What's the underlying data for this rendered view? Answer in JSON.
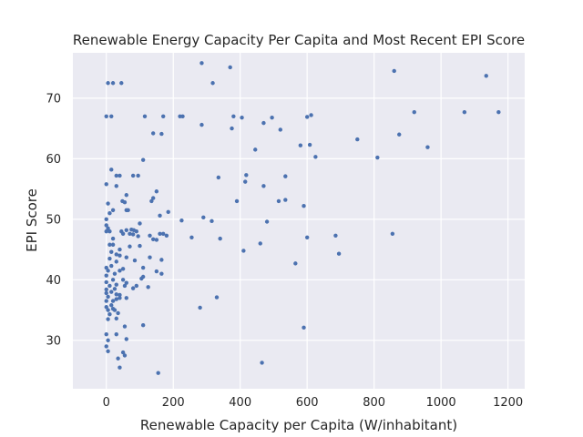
{
  "chart_data": {
    "type": "scatter",
    "title": "Renewable Energy Capacity Per Capita and Most Recent EPI Score",
    "xlabel": "Renewable Capacity per Capita (W/inhabitant)",
    "ylabel": "EPI Score",
    "xlim": [
      -100,
      1250
    ],
    "ylim": [
      22,
      77.5
    ],
    "xticks": [
      0,
      200,
      400,
      600,
      800,
      1000,
      1200
    ],
    "yticks": [
      30,
      40,
      50,
      60,
      70
    ],
    "grid": true,
    "colors": {
      "background": "#eaeaf2",
      "point": "#4c72b0",
      "grid": "#ffffff"
    },
    "points": [
      {
        "x": 5,
        "y": 72.5
      },
      {
        "x": 20,
        "y": 72.5
      },
      {
        "x": 45,
        "y": 72.5
      },
      {
        "x": 285,
        "y": 75.8
      },
      {
        "x": 370,
        "y": 75.1
      },
      {
        "x": 318,
        "y": 72.5
      },
      {
        "x": 860,
        "y": 74.5
      },
      {
        "x": 1135,
        "y": 73.7
      },
      {
        "x": 0,
        "y": 67
      },
      {
        "x": 15,
        "y": 67
      },
      {
        "x": 115,
        "y": 67
      },
      {
        "x": 170,
        "y": 67
      },
      {
        "x": 220,
        "y": 67
      },
      {
        "x": 228,
        "y": 67
      },
      {
        "x": 380,
        "y": 67
      },
      {
        "x": 405,
        "y": 66.8
      },
      {
        "x": 495,
        "y": 66.8
      },
      {
        "x": 470,
        "y": 65.9
      },
      {
        "x": 600,
        "y": 66.9
      },
      {
        "x": 612,
        "y": 67.2
      },
      {
        "x": 920,
        "y": 67.7
      },
      {
        "x": 1070,
        "y": 67.7
      },
      {
        "x": 1172,
        "y": 67.7
      },
      {
        "x": 285,
        "y": 65.6
      },
      {
        "x": 375,
        "y": 65
      },
      {
        "x": 140,
        "y": 64.2
      },
      {
        "x": 165,
        "y": 64.1
      },
      {
        "x": 520,
        "y": 64.8
      },
      {
        "x": 875,
        "y": 64
      },
      {
        "x": 750,
        "y": 63.2
      },
      {
        "x": 580,
        "y": 62.2
      },
      {
        "x": 608,
        "y": 62.3
      },
      {
        "x": 960,
        "y": 61.9
      },
      {
        "x": 445,
        "y": 61.5
      },
      {
        "x": 625,
        "y": 60.3
      },
      {
        "x": 810,
        "y": 60.2
      },
      {
        "x": 110,
        "y": 59.8
      },
      {
        "x": 15,
        "y": 58.2
      },
      {
        "x": 30,
        "y": 57.2
      },
      {
        "x": 40,
        "y": 57.2
      },
      {
        "x": 80,
        "y": 57.2
      },
      {
        "x": 95,
        "y": 57.2
      },
      {
        "x": 418,
        "y": 57.3
      },
      {
        "x": 535,
        "y": 57.1
      },
      {
        "x": 335,
        "y": 56.9
      },
      {
        "x": 415,
        "y": 56.2
      },
      {
        "x": 0,
        "y": 55.8
      },
      {
        "x": 30,
        "y": 55.5
      },
      {
        "x": 470,
        "y": 55.5
      },
      {
        "x": 150,
        "y": 54.6
      },
      {
        "x": 60,
        "y": 54
      },
      {
        "x": 140,
        "y": 53.5
      },
      {
        "x": 135,
        "y": 53
      },
      {
        "x": 5,
        "y": 52.6
      },
      {
        "x": 48,
        "y": 53
      },
      {
        "x": 55,
        "y": 52.8
      },
      {
        "x": 390,
        "y": 53
      },
      {
        "x": 515,
        "y": 53
      },
      {
        "x": 535,
        "y": 53.2
      },
      {
        "x": 590,
        "y": 52.2
      },
      {
        "x": 20,
        "y": 51.5
      },
      {
        "x": 60,
        "y": 51.5
      },
      {
        "x": 65,
        "y": 51.5
      },
      {
        "x": 10,
        "y": 51
      },
      {
        "x": 185,
        "y": 51.2
      },
      {
        "x": 160,
        "y": 50.6
      },
      {
        "x": 290,
        "y": 50.3
      },
      {
        "x": 0,
        "y": 50
      },
      {
        "x": 315,
        "y": 49.7
      },
      {
        "x": 225,
        "y": 49.8
      },
      {
        "x": 480,
        "y": 49.6
      },
      {
        "x": 0,
        "y": 49
      },
      {
        "x": 100,
        "y": 49.3
      },
      {
        "x": 5,
        "y": 48.5
      },
      {
        "x": 60,
        "y": 48.2
      },
      {
        "x": 75,
        "y": 48.3
      },
      {
        "x": 82,
        "y": 48.2
      },
      {
        "x": 90,
        "y": 48
      },
      {
        "x": 0,
        "y": 48
      },
      {
        "x": 10,
        "y": 48
      },
      {
        "x": 45,
        "y": 48
      },
      {
        "x": 50,
        "y": 47.6
      },
      {
        "x": 70,
        "y": 47.6
      },
      {
        "x": 80,
        "y": 47.5
      },
      {
        "x": 95,
        "y": 47.2
      },
      {
        "x": 130,
        "y": 47.3
      },
      {
        "x": 160,
        "y": 47.6
      },
      {
        "x": 170,
        "y": 47.6
      },
      {
        "x": 180,
        "y": 47.3
      },
      {
        "x": 255,
        "y": 47
      },
      {
        "x": 600,
        "y": 47
      },
      {
        "x": 685,
        "y": 47.3
      },
      {
        "x": 855,
        "y": 47.6
      },
      {
        "x": 20,
        "y": 46.8
      },
      {
        "x": 10,
        "y": 45.8
      },
      {
        "x": 20,
        "y": 45.8
      },
      {
        "x": 140,
        "y": 46.7
      },
      {
        "x": 150,
        "y": 46.6
      },
      {
        "x": 340,
        "y": 46.8
      },
      {
        "x": 460,
        "y": 46
      },
      {
        "x": 70,
        "y": 45.5
      },
      {
        "x": 100,
        "y": 45.6
      },
      {
        "x": 15,
        "y": 44.6
      },
      {
        "x": 30,
        "y": 44.2
      },
      {
        "x": 40,
        "y": 45
      },
      {
        "x": 410,
        "y": 44.8
      },
      {
        "x": 695,
        "y": 44.3
      },
      {
        "x": 10,
        "y": 43.5
      },
      {
        "x": 40,
        "y": 44
      },
      {
        "x": 60,
        "y": 43.7
      },
      {
        "x": 85,
        "y": 43.2
      },
      {
        "x": 130,
        "y": 43.7
      },
      {
        "x": 30,
        "y": 43
      },
      {
        "x": 165,
        "y": 43.3
      },
      {
        "x": 0,
        "y": 42
      },
      {
        "x": 15,
        "y": 42.3
      },
      {
        "x": 110,
        "y": 42
      },
      {
        "x": 5,
        "y": 41.5
      },
      {
        "x": 50,
        "y": 41.8
      },
      {
        "x": 25,
        "y": 41
      },
      {
        "x": 40,
        "y": 41.5
      },
      {
        "x": 0,
        "y": 40.7
      },
      {
        "x": 110,
        "y": 40.5
      },
      {
        "x": 150,
        "y": 41.4
      },
      {
        "x": 165,
        "y": 41
      },
      {
        "x": 565,
        "y": 42.7
      },
      {
        "x": 20,
        "y": 40
      },
      {
        "x": 50,
        "y": 40
      },
      {
        "x": 0,
        "y": 39.6
      },
      {
        "x": 60,
        "y": 39.5
      },
      {
        "x": 105,
        "y": 40.2
      },
      {
        "x": 10,
        "y": 39
      },
      {
        "x": 30,
        "y": 39.2
      },
      {
        "x": 55,
        "y": 39
      },
      {
        "x": 80,
        "y": 38.6
      },
      {
        "x": 90,
        "y": 39
      },
      {
        "x": 125,
        "y": 38.8
      },
      {
        "x": 0,
        "y": 38.4
      },
      {
        "x": 15,
        "y": 38
      },
      {
        "x": 25,
        "y": 38.5
      },
      {
        "x": 0,
        "y": 37.8
      },
      {
        "x": 30,
        "y": 37.6
      },
      {
        "x": 40,
        "y": 37.5
      },
      {
        "x": 5,
        "y": 37.2
      },
      {
        "x": 40,
        "y": 37
      },
      {
        "x": 60,
        "y": 37
      },
      {
        "x": 330,
        "y": 37.1
      },
      {
        "x": 0,
        "y": 36.5
      },
      {
        "x": 20,
        "y": 36.5
      },
      {
        "x": 30,
        "y": 36.8
      },
      {
        "x": 15,
        "y": 35.8
      },
      {
        "x": 0,
        "y": 35.5
      },
      {
        "x": 5,
        "y": 35
      },
      {
        "x": 20,
        "y": 35.2
      },
      {
        "x": 25,
        "y": 35
      },
      {
        "x": 280,
        "y": 35.4
      },
      {
        "x": 10,
        "y": 34.3
      },
      {
        "x": 35,
        "y": 34.5
      },
      {
        "x": 5,
        "y": 33.5
      },
      {
        "x": 30,
        "y": 33.6
      },
      {
        "x": 110,
        "y": 32.5
      },
      {
        "x": 55,
        "y": 32.3
      },
      {
        "x": 590,
        "y": 32.1
      },
      {
        "x": 0,
        "y": 31
      },
      {
        "x": 30,
        "y": 31
      },
      {
        "x": 60,
        "y": 30.2
      },
      {
        "x": 5,
        "y": 30
      },
      {
        "x": 0,
        "y": 29
      },
      {
        "x": 5,
        "y": 28.2
      },
      {
        "x": 50,
        "y": 28
      },
      {
        "x": 55,
        "y": 27.5
      },
      {
        "x": 35,
        "y": 27
      },
      {
        "x": 465,
        "y": 26.3
      },
      {
        "x": 40,
        "y": 25.5
      },
      {
        "x": 155,
        "y": 24.6
      }
    ]
  }
}
